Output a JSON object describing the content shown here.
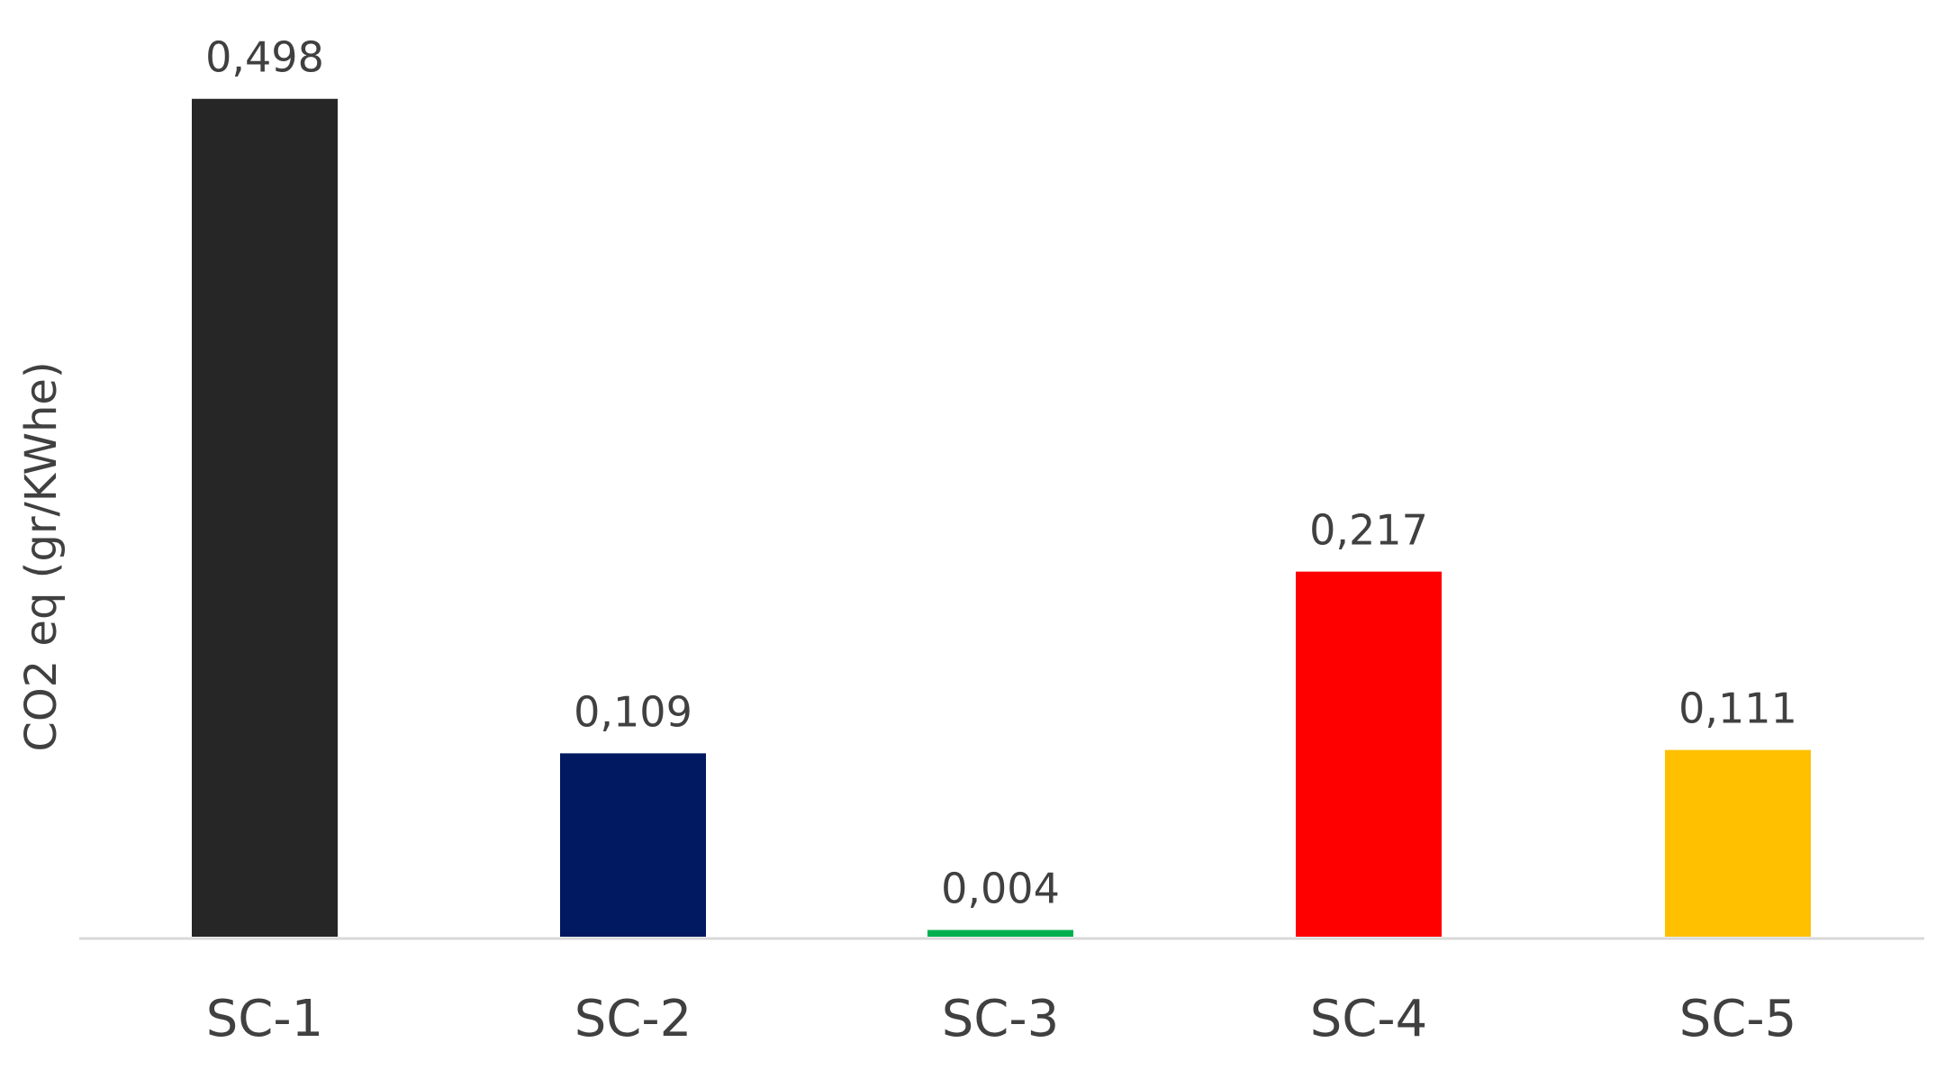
{
  "chart_data": {
    "type": "bar",
    "title": "",
    "xlabel": "",
    "ylabel": "CO2 eq (gr/KWhe)",
    "categories": [
      "SC-1",
      "SC-2",
      "SC-3",
      "SC-4",
      "SC-5"
    ],
    "values": [
      0.498,
      0.109,
      0.004,
      0.217,
      0.111
    ],
    "value_labels": [
      "0,498",
      "0,109",
      "0,004",
      "0,217",
      "0,111"
    ],
    "colors": [
      "#262626",
      "#001960",
      "#00B050",
      "#FF0000",
      "#FFC000"
    ],
    "ylim": [
      0,
      0.5
    ],
    "grid": false,
    "legend": "none"
  }
}
